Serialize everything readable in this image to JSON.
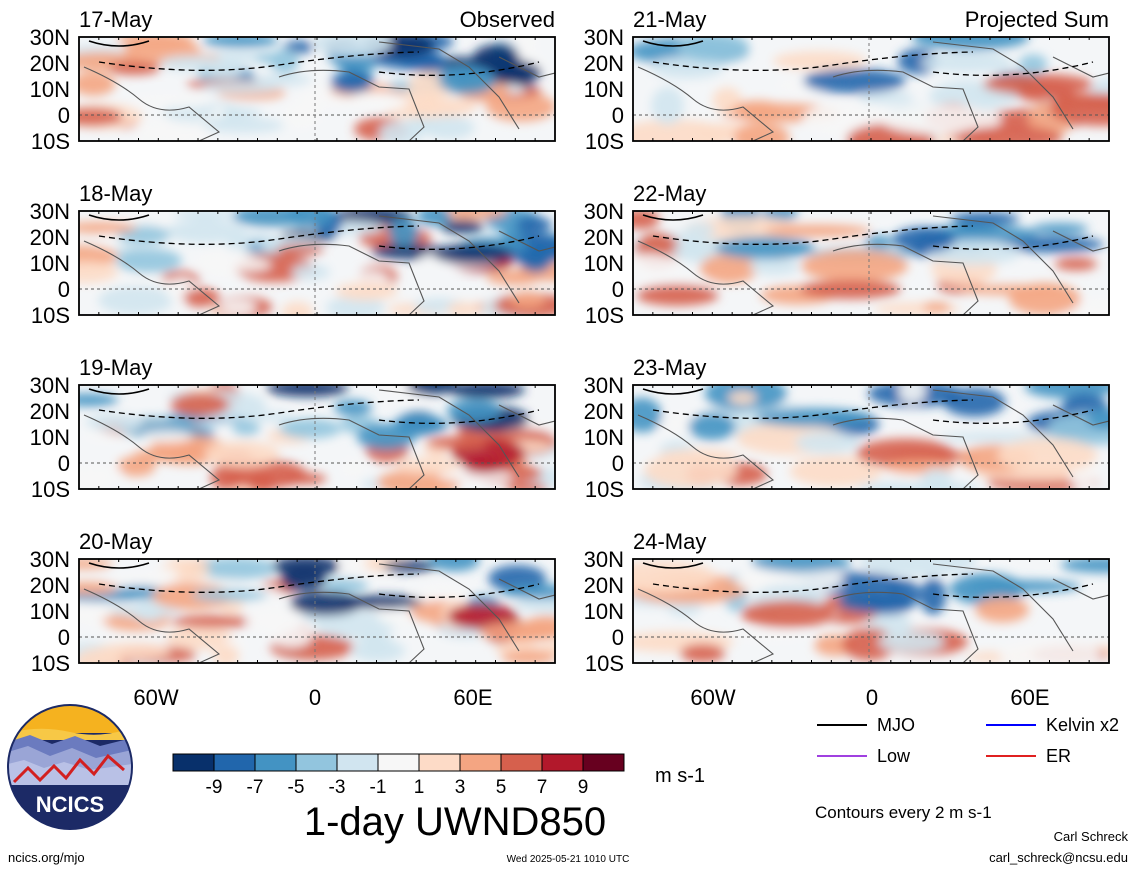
{
  "figure": {
    "title": "1-day UWND850",
    "units": "m s-1",
    "contour_note": "Contours every 2 m s-1",
    "author": "Carl Schreck",
    "email": "carl_schreck@ncsu.edu",
    "url": "ncics.org/mjo",
    "timestamp": "Wed 2025-05-21 1010 UTC",
    "logo_text": "NCICS"
  },
  "columns": {
    "left_label": "Observed",
    "right_label": "Projected Sum"
  },
  "panels_left": [
    "17-May",
    "18-May",
    "19-May",
    "20-May"
  ],
  "panels_right": [
    "21-May",
    "22-May",
    "23-May",
    "24-May"
  ],
  "lat_labels": [
    "30N",
    "20N",
    "10N",
    "0",
    "10S"
  ],
  "lon_labels": [
    "60W",
    "0",
    "60E"
  ],
  "colorbar": {
    "ticks": [
      "-9",
      "-7",
      "-5",
      "-3",
      "-1",
      "1",
      "3",
      "5",
      "7",
      "9"
    ],
    "colors": [
      "#08306b",
      "#2166ac",
      "#4393c3",
      "#92c5de",
      "#d1e5f0",
      "#f7f7f7",
      "#fddbc7",
      "#f4a582",
      "#d6604d",
      "#b2182b",
      "#67001f"
    ]
  },
  "legend": {
    "items": [
      {
        "label": "MJO",
        "color": "#000000"
      },
      {
        "label": "Kelvin x2",
        "color": "#0000ff"
      },
      {
        "label": "Low",
        "color": "#a040e0"
      },
      {
        "label": "ER",
        "color": "#e02020"
      }
    ]
  }
}
